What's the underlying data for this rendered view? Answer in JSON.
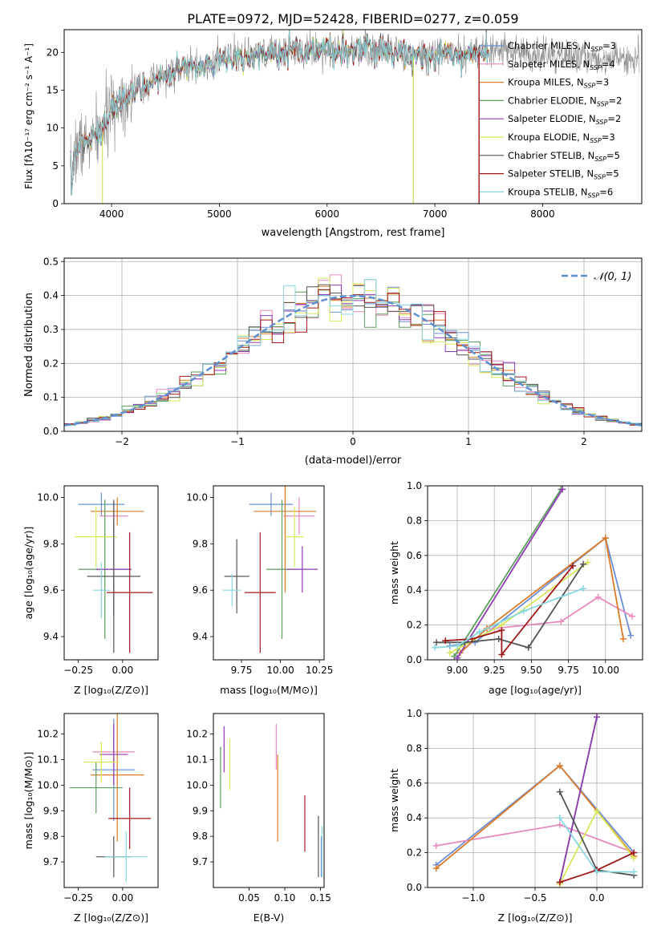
{
  "figure": {
    "title": "PLATE=0972, MJD=52428, FIBERID=0277, z=0.059",
    "series_colors": [
      "#6a8fd6",
      "#e68ac0",
      "#dd7a28",
      "#5a9e5a",
      "#8e3bb5",
      "#d8e858",
      "#555555",
      "#a01818",
      "#88d8e0"
    ]
  },
  "chart_data": [
    {
      "id": "spectrum",
      "type": "line",
      "xlabel": "wavelength [Angstrom, rest frame]",
      "ylabel": "Flux [fλ10⁻¹⁷ erg cm⁻² s⁻¹ A⁻¹]",
      "xlim": [
        3560,
        8920
      ],
      "ylim": [
        0,
        23
      ],
      "xticks": [
        4000,
        5000,
        6000,
        7000,
        8000
      ],
      "yticks": [
        0,
        5,
        10,
        15,
        20
      ],
      "legend_position": "upper right",
      "legend": [
        {
          "label": "Chabrier MILES, N_SSP=3",
          "color": "#6a8fd6"
        },
        {
          "label": "Salpeter MILES, N_SSP=4",
          "color": "#e68ac0"
        },
        {
          "label": "Kroupa MILES, N_SSP=3",
          "color": "#dd7a28"
        },
        {
          "label": "Chabrier ELODIE, N_SSP=2",
          "color": "#5a9e5a"
        },
        {
          "label": "Salpeter ELODIE, N_SSP=2",
          "color": "#8e3bb5"
        },
        {
          "label": "Kroupa ELODIE, N_SSP=3",
          "color": "#d8e858"
        },
        {
          "label": "Chabrier STELIB, N_SSP=5",
          "color": "#555555"
        },
        {
          "label": "Salpeter STELIB, N_SSP=5",
          "color": "#a01818"
        },
        {
          "label": "Kroupa STELIB, N_SSP=6",
          "color": "#88d8e0"
        }
      ],
      "continuum": {
        "x": [
          3620,
          3700,
          3800,
          3900,
          3950,
          4000,
          4100,
          4200,
          4300,
          4400,
          4500,
          4600,
          4700,
          4800,
          4900,
          5000,
          5200,
          5400,
          5600,
          5800,
          6000,
          6200,
          6400,
          6600,
          6800,
          7000,
          7200,
          7400,
          7600,
          7800,
          8000,
          8200,
          8400,
          8600,
          8800
        ],
        "y": [
          6,
          7.8,
          8.2,
          9.5,
          11,
          12.5,
          14,
          15,
          15.5,
          16.5,
          17,
          17.5,
          18,
          18,
          18.5,
          19,
          19.3,
          19.6,
          20,
          20.2,
          20.4,
          20.4,
          20.3,
          20.1,
          19.8,
          19.7,
          19.7,
          19.8,
          20.2,
          20.0,
          19.6,
          19.5,
          19.3,
          19.2,
          19.1
        ]
      }
    },
    {
      "id": "residuals",
      "type": "histogram",
      "xlabel": "(data-model)/error",
      "ylabel": "Normed distribution",
      "xlim": [
        -2.5,
        2.5
      ],
      "ylim": [
        0,
        0.51
      ],
      "xticks": [
        -2,
        -1,
        0,
        1,
        2
      ],
      "yticks": [
        0.0,
        0.1,
        0.2,
        0.3,
        0.4,
        0.5
      ],
      "grid": true,
      "bin_width": 0.1,
      "reference_label": "𝒩(0, 1)",
      "legend_position": "upper right"
    },
    {
      "id": "age_vs_Z",
      "type": "errorbar",
      "xlabel": "Z [log₁₀(Z/Z⊙)]",
      "ylabel": "age  [log₁₀(age/yr)]",
      "xlim": [
        -0.33,
        0.2
      ],
      "ylim": [
        9.3,
        10.05
      ],
      "xticks": [
        -0.25,
        0.0
      ],
      "yticks": [
        9.4,
        9.6,
        9.8,
        10.0
      ],
      "points": [
        {
          "x": -0.12,
          "y": 9.97,
          "xerr": 0.13,
          "yerr": 0.05
        },
        {
          "x": -0.05,
          "y": 9.92,
          "xerr": 0.08,
          "yerr": 0.06
        },
        {
          "x": -0.03,
          "y": 9.94,
          "xerr": 0.15,
          "yerr": 0.06
        },
        {
          "x": -0.1,
          "y": 9.69,
          "xerr": 0.15,
          "yerr": 0.3
        },
        {
          "x": -0.05,
          "y": 9.69,
          "xerr": 0.1,
          "yerr": 0.2
        },
        {
          "x": -0.15,
          "y": 9.83,
          "xerr": 0.12,
          "yerr": 0.13
        },
        {
          "x": -0.05,
          "y": 9.66,
          "xerr": 0.15,
          "yerr": 0.33
        },
        {
          "x": 0.04,
          "y": 9.59,
          "xerr": 0.13,
          "yerr": 0.26
        },
        {
          "x": -0.12,
          "y": 9.6,
          "xerr": 0.05,
          "yerr": 0.12
        }
      ]
    },
    {
      "id": "age_vs_mass",
      "type": "errorbar",
      "xlabel": "mass [log₁₀(M/M⊙)]",
      "ylabel": "",
      "xlim": [
        9.57,
        10.28
      ],
      "ylim": [
        9.3,
        10.05
      ],
      "xticks": [
        9.75,
        10.0,
        10.25
      ],
      "yticks": [
        9.4,
        9.6,
        9.8,
        10.0
      ],
      "points": [
        {
          "x": 9.94,
          "y": 9.97,
          "xerr": 0.14,
          "yerr": 0.05
        },
        {
          "x": 10.12,
          "y": 9.92,
          "xerr": 0.1,
          "yerr": 0.08
        },
        {
          "x": 10.03,
          "y": 9.94,
          "xerr": 0.2,
          "yerr": 0.35
        },
        {
          "x": 10.01,
          "y": 9.69,
          "xerr": 0.1,
          "yerr": 0.3
        },
        {
          "x": 10.14,
          "y": 9.69,
          "xerr": 0.1,
          "yerr": 0.1
        },
        {
          "x": 10.09,
          "y": 9.83,
          "xerr": 0.06,
          "yerr": 0.13
        },
        {
          "x": 9.72,
          "y": 9.66,
          "xerr": 0.08,
          "yerr": 0.16
        },
        {
          "x": 9.87,
          "y": 9.59,
          "xerr": 0.1,
          "yerr": 0.26
        },
        {
          "x": 9.69,
          "y": 9.6,
          "xerr": 0.06,
          "yerr": 0.07
        }
      ]
    },
    {
      "id": "weight_vs_age",
      "type": "line",
      "xlabel": "age  [log₁₀(age/yr)]",
      "ylabel": "mass weight",
      "xlim": [
        8.8,
        10.25
      ],
      "ylim": [
        0,
        1.0
      ],
      "xticks": [
        9.0,
        9.25,
        9.5,
        9.75,
        10.0
      ],
      "yticks": [
        0.0,
        0.2,
        0.4,
        0.6,
        0.8,
        1.0
      ],
      "grid": true,
      "series": [
        {
          "x": [
            8.95,
            9.12,
            10.0,
            10.17
          ],
          "y": [
            0.08,
            0.1,
            0.7,
            0.14
          ]
        },
        {
          "x": [
            9.25,
            9.7,
            9.95,
            10.18
          ],
          "y": [
            0.18,
            0.22,
            0.36,
            0.25
          ]
        },
        {
          "x": [
            9.02,
            9.2,
            10.0,
            10.12
          ],
          "y": [
            0.04,
            0.18,
            0.7,
            0.12
          ]
        },
        {
          "x": [
            8.98,
            9.7
          ],
          "y": [
            0.02,
            0.98
          ]
        },
        {
          "x": [
            9.0,
            9.71
          ],
          "y": [
            0.01,
            0.98
          ]
        },
        {
          "x": [
            8.95,
            9.3,
            9.88
          ],
          "y": [
            0.04,
            0.2,
            0.56
          ]
        },
        {
          "x": [
            8.86,
            9.05,
            9.28,
            9.48,
            9.85
          ],
          "y": [
            0.1,
            0.1,
            0.12,
            0.07,
            0.55
          ]
        },
        {
          "x": [
            8.92,
            9.1,
            9.3,
            9.3,
            9.78
          ],
          "y": [
            0.11,
            0.12,
            0.17,
            0.03,
            0.54
          ]
        },
        {
          "x": [
            8.85,
            9.0,
            9.15,
            9.45,
            9.85
          ],
          "y": [
            0.07,
            0.08,
            0.16,
            0.28,
            0.41
          ]
        }
      ]
    },
    {
      "id": "mass_vs_Z",
      "type": "errorbar",
      "xlabel": "Z [log₁₀(Z/Z⊙)]",
      "ylabel": "mass [log₁₀(M/M⊙)]",
      "xlim": [
        -0.33,
        0.2
      ],
      "ylim": [
        9.6,
        10.28
      ],
      "xticks": [
        -0.25,
        0.0
      ],
      "yticks": [
        9.7,
        9.8,
        9.9,
        10.0,
        10.1,
        10.2
      ],
      "points": [
        {
          "x": -0.05,
          "y": 10.06,
          "xerr": 0.12,
          "yerr": 0.2
        },
        {
          "x": -0.05,
          "y": 10.13,
          "xerr": 0.12,
          "yerr": 0.05
        },
        {
          "x": -0.03,
          "y": 10.04,
          "xerr": 0.15,
          "yerr": 0.26
        },
        {
          "x": -0.15,
          "y": 9.99,
          "xerr": 0.15,
          "yerr": 0.1
        },
        {
          "x": -0.05,
          "y": 10.12,
          "xerr": 0.08,
          "yerr": 0.12
        },
        {
          "x": -0.12,
          "y": 10.09,
          "xerr": 0.1,
          "yerr": 0.08
        },
        {
          "x": -0.05,
          "y": 9.72,
          "xerr": 0.1,
          "yerr": 0.08
        },
        {
          "x": 0.04,
          "y": 9.87,
          "xerr": 0.12,
          "yerr": 0.12
        },
        {
          "x": 0.02,
          "y": 9.72,
          "xerr": 0.12,
          "yerr": 0.1
        }
      ]
    },
    {
      "id": "mass_vs_EBV",
      "type": "errorbar",
      "xlabel": "E(B-V)",
      "ylabel": "",
      "xlim": [
        0.0,
        0.155
      ],
      "ylim": [
        9.6,
        10.28
      ],
      "xticks": [
        0.05,
        0.1,
        0.15
      ],
      "yticks": [
        9.7,
        9.8,
        9.9,
        10.0,
        10.1,
        10.2
      ],
      "points": [
        {
          "x": 0.151,
          "y": 9.72,
          "yerr": 0.08
        },
        {
          "x": 0.088,
          "y": 10.15,
          "yerr": 0.09
        },
        {
          "x": 0.09,
          "y": 9.95,
          "yerr": 0.17
        },
        {
          "x": 0.01,
          "y": 10.03,
          "yerr": 0.12
        },
        {
          "x": 0.015,
          "y": 10.14,
          "yerr": 0.09
        },
        {
          "x": 0.023,
          "y": 10.08,
          "yerr": 0.1
        },
        {
          "x": 0.147,
          "y": 9.76,
          "yerr": 0.12
        },
        {
          "x": 0.128,
          "y": 9.85,
          "yerr": 0.11
        },
        {
          "x": 0.152,
          "y": 9.74,
          "yerr": 0.1
        }
      ]
    },
    {
      "id": "weight_vs_Z",
      "type": "line",
      "xlabel": "Z [log₁₀(Z/Z⊙)]",
      "ylabel": "mass weight",
      "xlim": [
        -1.37,
        0.37
      ],
      "ylim": [
        0,
        1.0
      ],
      "xticks": [
        -1.0,
        -0.5,
        0.0
      ],
      "yticks": [
        0.0,
        0.2,
        0.4,
        0.6,
        0.8,
        1.0
      ],
      "grid": true,
      "series": [
        {
          "x": [
            -1.3,
            -0.3,
            0.3
          ],
          "y": [
            0.13,
            0.7,
            0.2
          ]
        },
        {
          "x": [
            -1.3,
            -0.3,
            0.3
          ],
          "y": [
            0.24,
            0.36,
            0.2
          ]
        },
        {
          "x": [
            -1.3,
            -0.3,
            0.3
          ],
          "y": [
            0.11,
            0.7,
            0.18
          ]
        },
        {
          "x": [
            -0.3,
            0.0
          ],
          "y": [
            0.03,
            0.98
          ]
        },
        {
          "x": [
            -0.3,
            0.0
          ],
          "y": [
            0.03,
            0.98
          ]
        },
        {
          "x": [
            -0.3,
            0.0,
            0.3
          ],
          "y": [
            0.02,
            0.44,
            0.17
          ]
        },
        {
          "x": [
            -0.3,
            0.0,
            0.3
          ],
          "y": [
            0.55,
            0.1,
            0.07
          ]
        },
        {
          "x": [
            -0.3,
            0.0,
            0.0,
            0.3
          ],
          "y": [
            0.03,
            0.1,
            0.1,
            0.2
          ]
        },
        {
          "x": [
            -0.3,
            0.0,
            0.3
          ],
          "y": [
            0.4,
            0.09,
            0.09
          ]
        }
      ]
    }
  ]
}
